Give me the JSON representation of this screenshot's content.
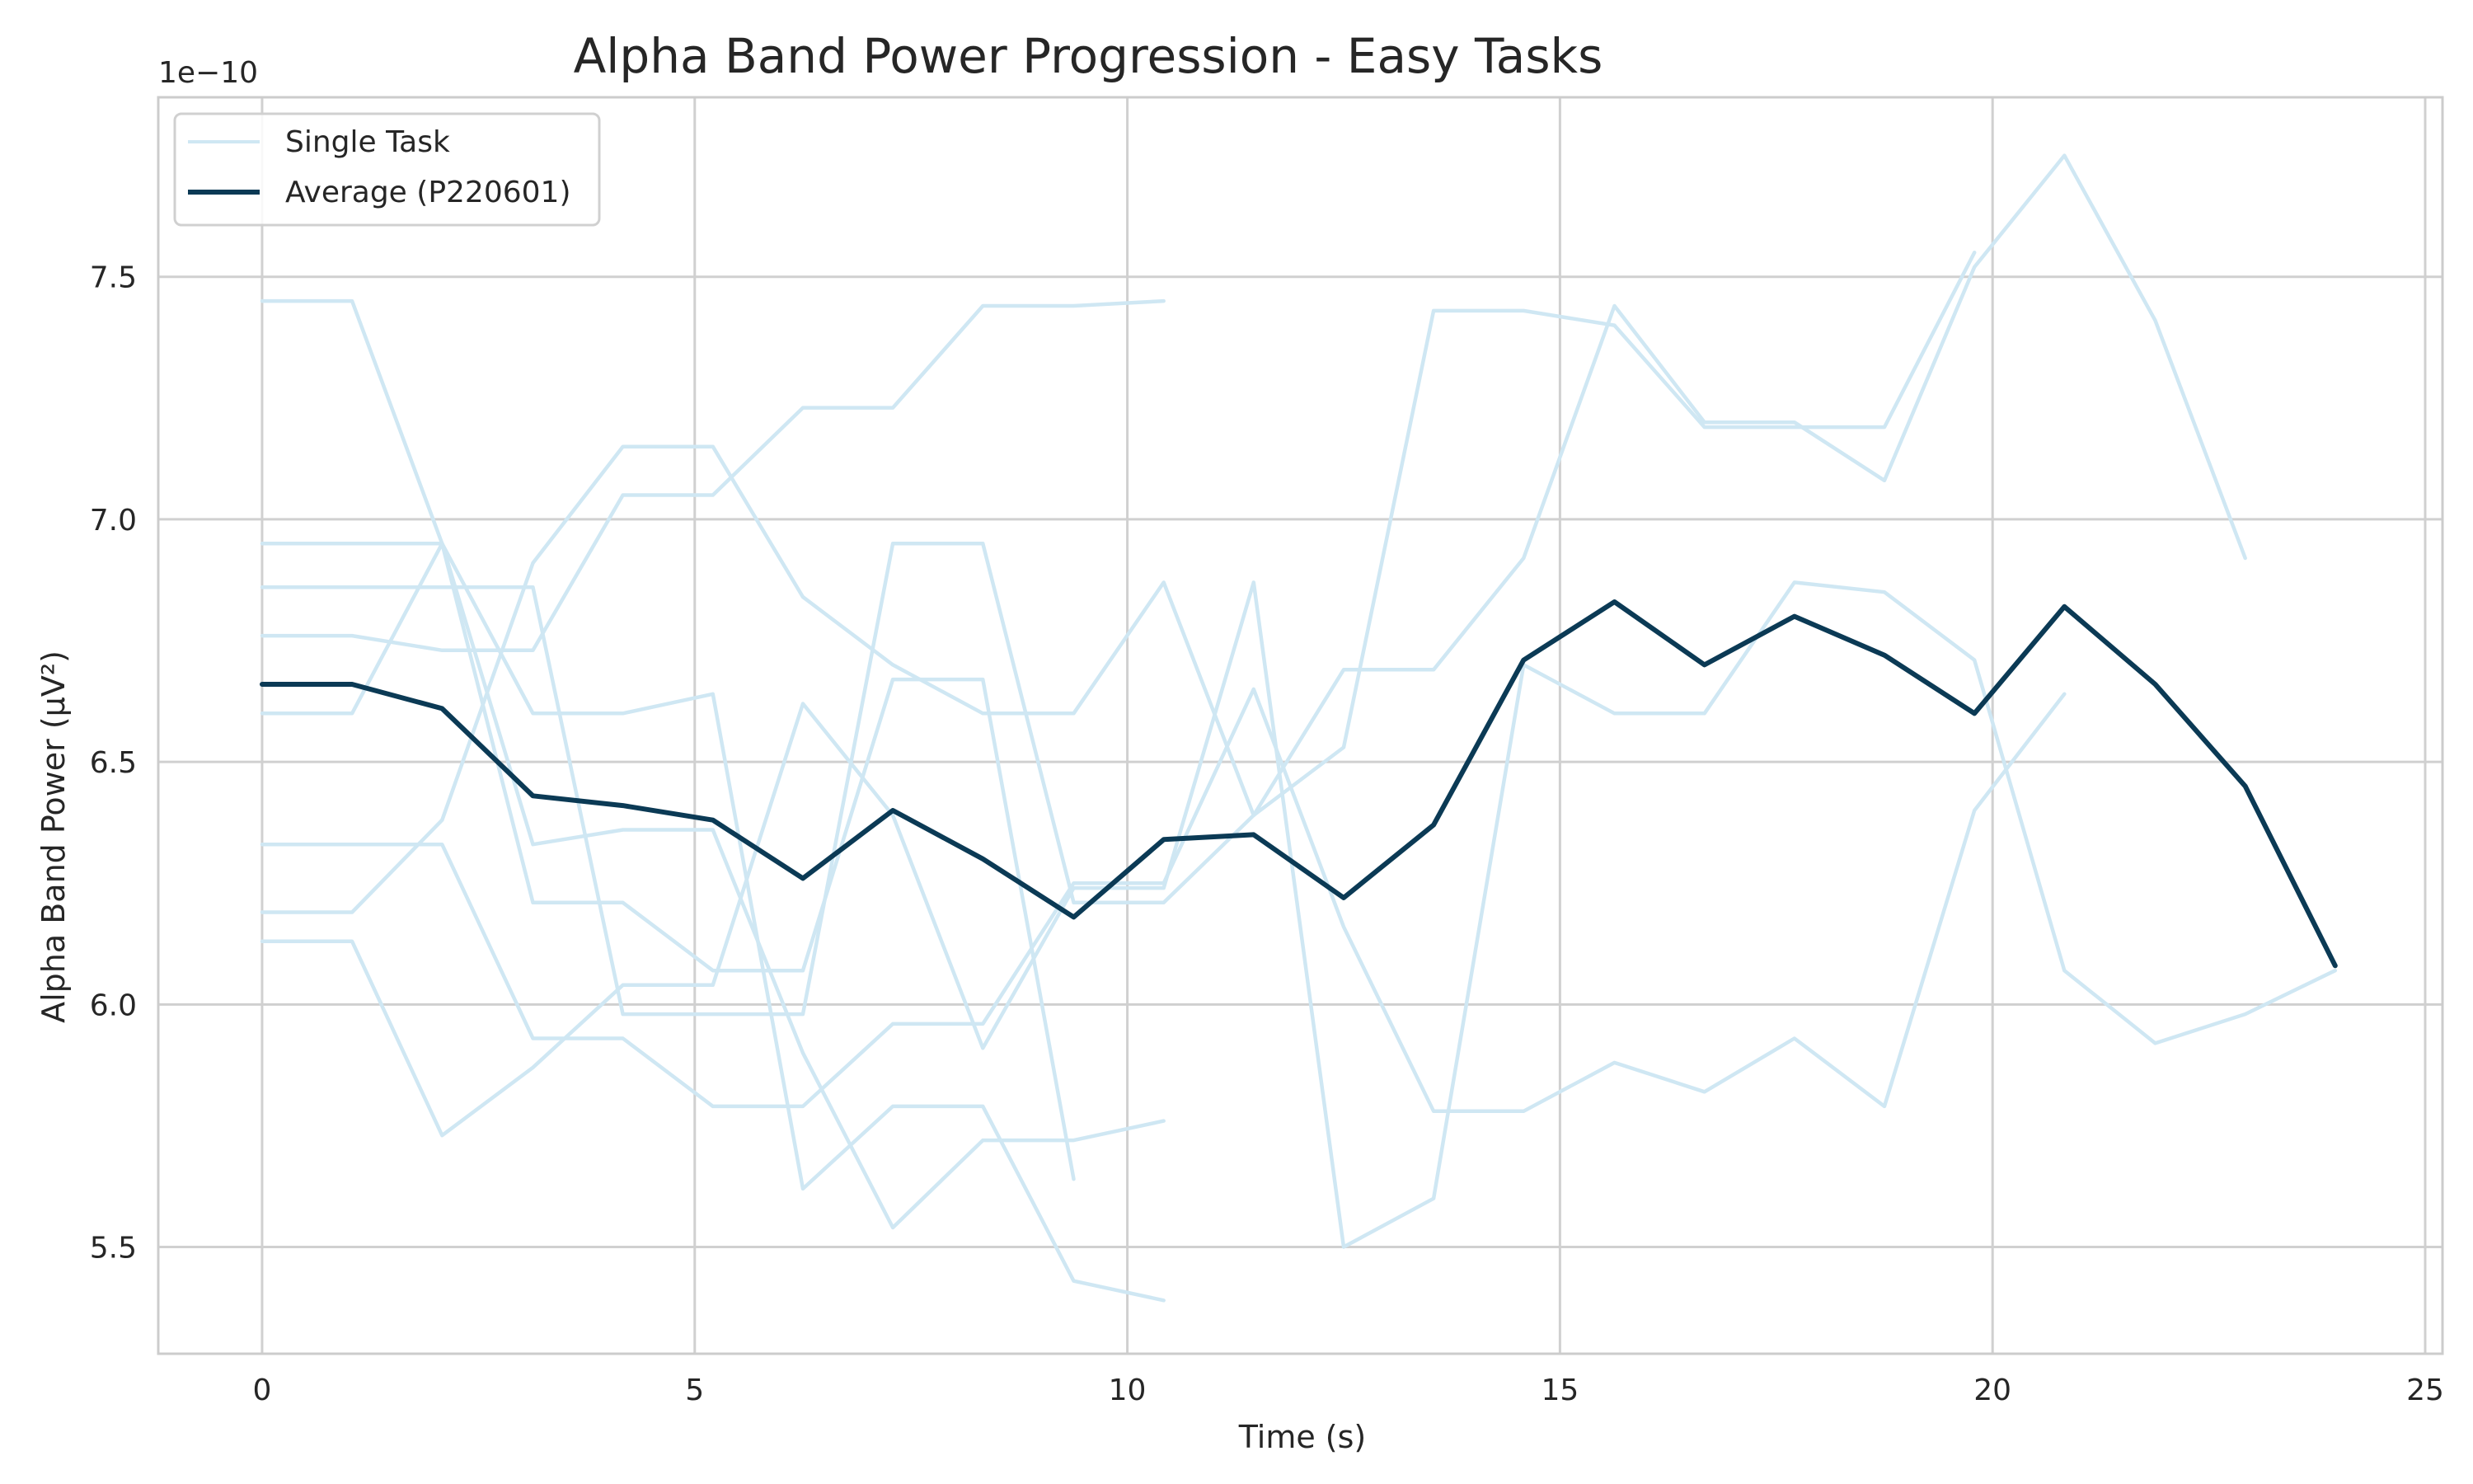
{
  "chart_data": {
    "type": "line",
    "title": "Alpha Band Power Progression - Easy Tasks",
    "xlabel": "Time (s)",
    "ylabel": "Alpha Band Power (μV²)",
    "offset_text": "1e−10",
    "xlim": [
      -1.2,
      25.2
    ],
    "ylim": [
      5.28,
      7.87
    ],
    "x_ticks": [
      0,
      5,
      10,
      15,
      20,
      25
    ],
    "x_tick_labels": [
      "0",
      "5",
      "10",
      "15",
      "20",
      "25"
    ],
    "y_ticks": [
      5.5,
      6.0,
      6.5,
      7.0,
      7.5
    ],
    "y_tick_labels": [
      "5.5",
      "6.0",
      "6.5",
      "7.0",
      "7.5"
    ],
    "grid": true,
    "legend": {
      "placement": "top-left",
      "entries": [
        {
          "label": "Single Task",
          "color": "#cfe7f3"
        },
        {
          "label": "Average (P220601)",
          "color": "#0b3a55"
        }
      ]
    },
    "single_task_color": "#cfe7f3",
    "average_color": "#0b3a55",
    "single_tasks": [
      {
        "x": [
          0,
          1.04,
          2.08,
          3.13,
          4.17,
          5.21,
          6.25,
          7.29,
          8.33,
          9.38,
          10.42
        ],
        "y": [
          7.45,
          7.45,
          6.95,
          6.6,
          6.6,
          6.64,
          5.62,
          5.79,
          5.79,
          5.43,
          5.39
        ]
      },
      {
        "x": [
          0,
          1.04,
          2.08,
          3.13,
          4.17,
          5.21,
          6.25,
          7.29,
          8.33,
          9.38,
          10.42
        ],
        "y": [
          6.6,
          6.6,
          6.95,
          6.33,
          6.36,
          6.36,
          5.9,
          5.54,
          5.72,
          5.72,
          5.76
        ]
      },
      {
        "x": [
          0,
          1.04,
          2.08,
          3.13,
          4.17,
          5.21,
          6.25,
          7.29,
          8.33,
          9.38,
          10.42
        ],
        "y": [
          6.76,
          6.76,
          6.73,
          6.73,
          7.05,
          7.05,
          7.23,
          7.23,
          7.44,
          7.44,
          7.45
        ]
      },
      {
        "x": [
          0,
          1.04,
          2.08,
          3.13,
          4.17,
          5.21,
          6.25,
          7.29,
          8.33,
          9.38
        ],
        "y": [
          6.95,
          6.95,
          6.95,
          6.21,
          6.21,
          6.07,
          6.07,
          6.67,
          6.67,
          5.64
        ]
      },
      {
        "x": [
          0,
          1.04,
          2.08,
          3.13,
          4.17,
          5.21,
          6.25,
          7.29,
          8.33,
          9.38,
          10.42,
          11.46,
          12.5,
          13.54,
          14.58,
          15.63,
          16.67,
          17.71,
          18.75,
          19.79
        ],
        "y": [
          6.86,
          6.86,
          6.86,
          6.86,
          5.98,
          5.98,
          5.98,
          6.95,
          6.95,
          6.21,
          6.21,
          6.39,
          6.53,
          7.43,
          7.43,
          7.4,
          7.19,
          7.19,
          7.19,
          7.55
        ]
      },
      {
        "x": [
          0,
          1.04,
          2.08,
          3.13,
          4.17,
          5.21,
          6.25,
          7.29,
          8.33,
          9.38,
          10.42,
          11.46,
          12.5,
          13.54,
          14.58,
          15.63,
          16.67,
          17.71,
          18.75,
          19.79,
          20.83,
          21.88,
          22.92
        ],
        "y": [
          6.19,
          6.19,
          6.38,
          6.91,
          7.15,
          7.15,
          6.84,
          6.7,
          6.6,
          6.6,
          6.87,
          6.39,
          6.69,
          6.69,
          6.92,
          7.44,
          7.2,
          7.2,
          7.08,
          7.52,
          7.75,
          7.41,
          6.92
        ]
      },
      {
        "x": [
          0,
          1.04,
          2.08,
          3.13,
          4.17,
          5.21,
          6.25,
          7.29,
          8.33,
          9.38,
          10.42,
          11.46,
          12.5,
          13.54,
          14.58,
          15.63,
          16.67,
          17.71,
          18.75,
          19.79,
          20.83
        ],
        "y": [
          6.33,
          6.33,
          6.33,
          5.93,
          5.93,
          5.79,
          5.79,
          5.96,
          5.96,
          6.25,
          6.25,
          6.65,
          6.16,
          5.78,
          5.78,
          5.88,
          5.82,
          5.93,
          5.79,
          6.4,
          6.64
        ]
      },
      {
        "x": [
          0,
          1.04,
          2.08,
          3.13,
          4.17,
          5.21,
          6.25,
          7.29,
          8.33,
          9.38,
          10.42,
          11.46,
          12.5,
          13.54,
          14.58,
          15.63,
          16.67,
          17.71,
          18.75,
          19.79,
          20.83,
          21.88,
          22.92,
          23.96
        ],
        "y": [
          6.13,
          6.13,
          5.73,
          5.87,
          6.04,
          6.04,
          6.62,
          6.39,
          5.91,
          6.24,
          6.24,
          6.87,
          5.5,
          5.6,
          6.7,
          6.6,
          6.6,
          6.87,
          6.85,
          6.71,
          6.07,
          5.92,
          5.98,
          6.07
        ]
      }
    ],
    "average": {
      "name": "Average (P220601)",
      "x": [
        0,
        1.04,
        2.08,
        3.13,
        4.17,
        5.21,
        6.25,
        7.29,
        8.33,
        9.38,
        10.42,
        11.46,
        12.5,
        13.54,
        14.58,
        15.63,
        16.67,
        17.71,
        18.75,
        19.79,
        20.83,
        21.88,
        22.92,
        23.96
      ],
      "y": [
        6.66,
        6.66,
        6.61,
        6.43,
        6.41,
        6.38,
        6.26,
        6.4,
        6.3,
        6.18,
        6.34,
        6.35,
        6.22,
        6.37,
        6.71,
        6.83,
        6.7,
        6.8,
        6.72,
        6.6,
        6.82,
        6.66,
        6.45,
        6.08
      ]
    }
  }
}
